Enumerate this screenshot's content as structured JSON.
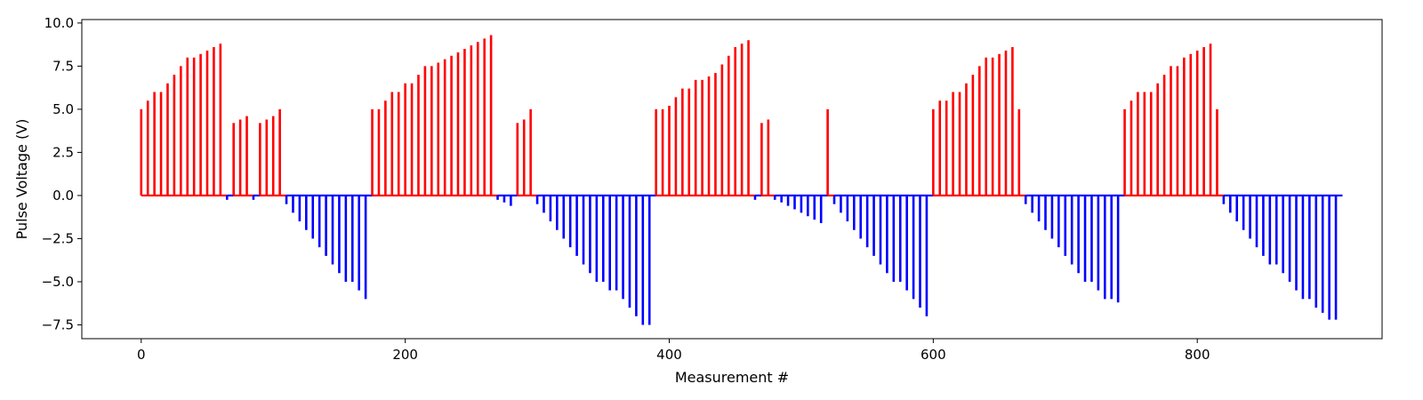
{
  "chart_data": {
    "type": "bar",
    "subtype": "stem",
    "title": "",
    "xlabel": "Measurement #",
    "ylabel": "Pulse Voltage (V)",
    "xlim": [
      -45,
      940
    ],
    "ylim": [
      -8.3,
      10.2
    ],
    "xticks": [
      0,
      200,
      400,
      600,
      800
    ],
    "yticks": [
      -7.5,
      -5.0,
      -2.5,
      0.0,
      2.5,
      5.0,
      7.5,
      10.0
    ],
    "ytick_labels": [
      "−7.5",
      "−5.0",
      "−2.5",
      "0.0",
      "2.5",
      "5.0",
      "7.5",
      "10.0"
    ],
    "baseline_range": [
      0,
      910
    ],
    "grid": false,
    "legend": "none",
    "colors": {
      "positive": "#ff0000",
      "negative": "#0000ff"
    },
    "series": [
      {
        "polarity": "positive",
        "x": [
          0,
          5,
          10,
          15,
          20,
          25,
          30,
          35,
          40,
          45,
          50,
          55,
          60,
          70,
          75,
          80,
          90,
          95,
          100,
          105,
          175,
          180,
          185,
          190,
          195,
          200,
          205,
          210,
          215,
          220,
          225,
          230,
          235,
          240,
          245,
          250,
          255,
          260,
          265,
          285,
          290,
          295,
          390,
          395,
          400,
          405,
          410,
          415,
          420,
          425,
          430,
          435,
          440,
          445,
          450,
          455,
          460,
          470,
          475,
          520,
          600,
          605,
          610,
          615,
          620,
          625,
          630,
          635,
          640,
          645,
          650,
          655,
          660,
          665,
          745,
          750,
          755,
          760,
          765,
          770,
          775,
          780,
          785,
          790,
          795,
          800,
          805,
          810,
          815
        ],
        "values": [
          5.0,
          5.5,
          6.0,
          6.0,
          6.5,
          7.0,
          7.5,
          8.0,
          8.0,
          8.2,
          8.4,
          8.6,
          8.8,
          4.2,
          4.4,
          4.6,
          4.2,
          4.4,
          4.6,
          5.0,
          5.0,
          5.0,
          5.5,
          6.0,
          6.0,
          6.5,
          6.5,
          7.0,
          7.5,
          7.5,
          7.7,
          7.9,
          8.1,
          8.3,
          8.5,
          8.7,
          8.9,
          9.1,
          9.3,
          4.2,
          4.4,
          5.0,
          5.0,
          5.0,
          5.2,
          5.7,
          6.2,
          6.2,
          6.7,
          6.7,
          6.9,
          7.1,
          7.6,
          8.1,
          8.6,
          8.8,
          9.0,
          4.2,
          4.4,
          5.0,
          5.0,
          5.5,
          5.5,
          6.0,
          6.0,
          6.5,
          7.0,
          7.5,
          8.0,
          8.0,
          8.2,
          8.4,
          8.6,
          5.0,
          5.0,
          5.5,
          6.0,
          6.0,
          6.0,
          6.5,
          7.0,
          7.5,
          7.5,
          8.0,
          8.2,
          8.4,
          8.6,
          8.8,
          5.0
        ]
      },
      {
        "polarity": "negative",
        "x": [
          65,
          85,
          110,
          115,
          120,
          125,
          130,
          135,
          140,
          145,
          150,
          155,
          160,
          165,
          170,
          270,
          275,
          280,
          300,
          305,
          310,
          315,
          320,
          325,
          330,
          335,
          340,
          345,
          350,
          355,
          360,
          365,
          370,
          375,
          380,
          385,
          465,
          480,
          485,
          490,
          495,
          500,
          505,
          510,
          515,
          525,
          530,
          535,
          540,
          545,
          550,
          555,
          560,
          565,
          570,
          575,
          580,
          585,
          590,
          595,
          670,
          675,
          680,
          685,
          690,
          695,
          700,
          705,
          710,
          715,
          720,
          725,
          730,
          735,
          740,
          820,
          825,
          830,
          835,
          840,
          845,
          850,
          855,
          860,
          865,
          870,
          875,
          880,
          885,
          890,
          895,
          900,
          905
        ],
        "values": [
          -0.25,
          -0.25,
          -0.5,
          -1.0,
          -1.5,
          -2.0,
          -2.5,
          -3.0,
          -3.5,
          -4.0,
          -4.5,
          -5.0,
          -5.0,
          -5.5,
          -6.0,
          -0.25,
          -0.4,
          -0.6,
          -0.5,
          -1.0,
          -1.5,
          -2.0,
          -2.5,
          -3.0,
          -3.5,
          -4.0,
          -4.5,
          -5.0,
          -5.0,
          -5.5,
          -5.5,
          -6.0,
          -6.5,
          -7.0,
          -7.5,
          -7.5,
          -0.25,
          -0.25,
          -0.4,
          -0.6,
          -0.8,
          -1.0,
          -1.2,
          -1.4,
          -1.6,
          -0.5,
          -1.0,
          -1.5,
          -2.0,
          -2.5,
          -3.0,
          -3.5,
          -4.0,
          -4.5,
          -5.0,
          -5.0,
          -5.5,
          -6.0,
          -6.5,
          -7.0,
          -0.5,
          -1.0,
          -1.5,
          -2.0,
          -2.5,
          -3.0,
          -3.5,
          -4.0,
          -4.5,
          -5.0,
          -5.0,
          -5.5,
          -6.0,
          -6.0,
          -6.2,
          -0.5,
          -1.0,
          -1.5,
          -2.0,
          -2.5,
          -3.0,
          -3.5,
          -4.0,
          -4.0,
          -4.5,
          -5.0,
          -5.5,
          -6.0,
          -6.0,
          -6.5,
          -6.8,
          -7.2,
          -7.2
        ]
      }
    ]
  }
}
